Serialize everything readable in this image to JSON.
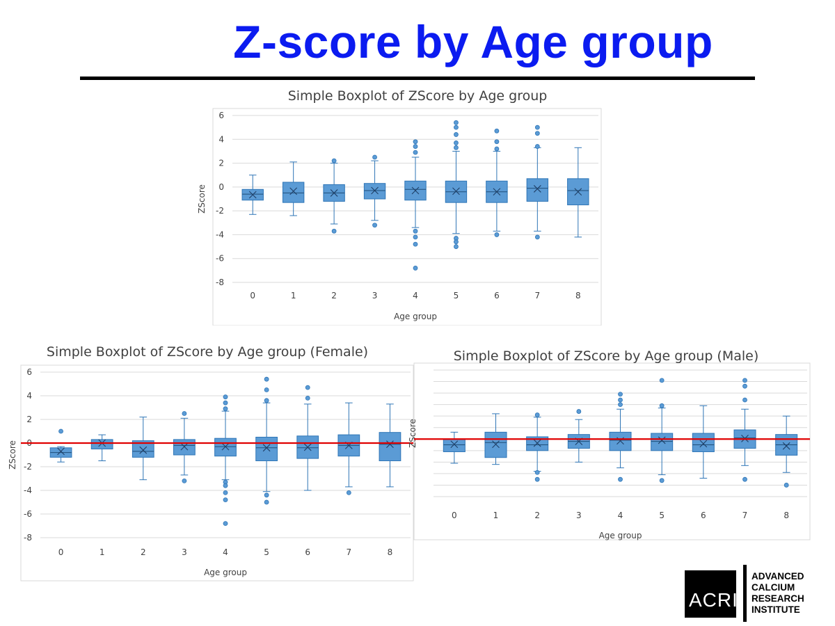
{
  "slide": {
    "title": "Z-score by Age group"
  },
  "logo": {
    "mark": "ACRI",
    "lines": [
      "ADVANCED",
      "CALCIUM",
      "RESEARCH",
      "INSTITUTE"
    ]
  },
  "colors": {
    "box_fill": "#5b9bd5",
    "box_stroke": "#2e75b6",
    "reference_line": "#e00000",
    "title": "#0b1bf0"
  },
  "chart_data": [
    {
      "type": "box",
      "title": "Simple Boxplot of ZScore by Age group",
      "xlabel": "Age group",
      "ylabel": "ZScore",
      "categories": [
        "0",
        "1",
        "2",
        "3",
        "4",
        "5",
        "6",
        "7",
        "8"
      ],
      "ylim": [
        -8,
        6
      ],
      "yticks": [
        -8,
        -6,
        -4,
        -2,
        0,
        2,
        4,
        6
      ],
      "show_ytick_labels": true,
      "reference_line": null,
      "boxes": [
        {
          "min": -2.3,
          "q1": -1.1,
          "median": -0.6,
          "q3": -0.2,
          "max": 1.0,
          "mean": -0.65,
          "outliers": []
        },
        {
          "min": -2.4,
          "q1": -1.3,
          "median": -0.5,
          "q3": 0.4,
          "max": 2.1,
          "mean": -0.35,
          "outliers": []
        },
        {
          "min": -3.1,
          "q1": -1.2,
          "median": -0.5,
          "q3": 0.2,
          "max": 2.0,
          "mean": -0.5,
          "outliers": [
            2.2,
            -3.7
          ]
        },
        {
          "min": -2.8,
          "q1": -1.0,
          "median": -0.3,
          "q3": 0.3,
          "max": 2.2,
          "mean": -0.3,
          "outliers": [
            2.5,
            -3.2
          ]
        },
        {
          "min": -3.4,
          "q1": -1.1,
          "median": -0.2,
          "q3": 0.5,
          "max": 2.5,
          "mean": -0.3,
          "outliers": [
            3.8,
            3.4,
            2.9,
            -3.7,
            -4.2,
            -4.8,
            -6.8
          ]
        },
        {
          "min": -3.9,
          "q1": -1.3,
          "median": -0.4,
          "q3": 0.5,
          "max": 3.0,
          "mean": -0.35,
          "outliers": [
            5.4,
            5.0,
            4.4,
            3.7,
            3.3,
            -4.3,
            -4.6,
            -5.0
          ]
        },
        {
          "min": -3.7,
          "q1": -1.3,
          "median": -0.4,
          "q3": 0.5,
          "max": 3.0,
          "mean": -0.4,
          "outliers": [
            4.7,
            3.8,
            3.2,
            -4.0
          ]
        },
        {
          "min": -3.7,
          "q1": -1.2,
          "median": -0.1,
          "q3": 0.7,
          "max": 3.3,
          "mean": -0.15,
          "outliers": [
            5.0,
            4.5,
            3.4,
            -4.2
          ]
        },
        {
          "min": -4.2,
          "q1": -1.5,
          "median": -0.3,
          "q3": 0.7,
          "max": 3.3,
          "mean": -0.4,
          "outliers": []
        }
      ]
    },
    {
      "type": "box",
      "title": "Simple Boxplot of ZScore by Age group (Female)",
      "xlabel": "Age group",
      "ylabel": "ZScore",
      "categories": [
        "0",
        "1",
        "2",
        "3",
        "4",
        "5",
        "6",
        "7",
        "8"
      ],
      "ylim": [
        -8,
        6
      ],
      "yticks": [
        -8,
        -6,
        -4,
        -2,
        0,
        2,
        4,
        6
      ],
      "show_ytick_labels": true,
      "reference_line": 0,
      "boxes": [
        {
          "min": -1.6,
          "q1": -1.2,
          "median": -0.8,
          "q3": -0.4,
          "max": -0.3,
          "mean": -0.7,
          "outliers": [
            1.0
          ]
        },
        {
          "min": -1.5,
          "q1": -0.5,
          "median": 0.0,
          "q3": 0.3,
          "max": 0.7,
          "mean": 0.0,
          "outliers": []
        },
        {
          "min": -3.1,
          "q1": -1.2,
          "median": -0.7,
          "q3": 0.2,
          "max": 2.2,
          "mean": -0.6,
          "outliers": []
        },
        {
          "min": -2.7,
          "q1": -1.0,
          "median": -0.2,
          "q3": 0.3,
          "max": 2.1,
          "mean": -0.3,
          "outliers": [
            2.5,
            -3.2
          ]
        },
        {
          "min": -3.1,
          "q1": -1.1,
          "median": -0.3,
          "q3": 0.4,
          "max": 2.7,
          "mean": -0.3,
          "outliers": [
            3.9,
            3.4,
            2.9,
            -3.3,
            -3.6,
            -4.2,
            -4.8,
            -6.8
          ]
        },
        {
          "min": -4.1,
          "q1": -1.5,
          "median": -0.4,
          "q3": 0.5,
          "max": 3.4,
          "mean": -0.4,
          "outliers": [
            5.4,
            4.5,
            3.6,
            -4.4,
            -5.0
          ]
        },
        {
          "min": -4.0,
          "q1": -1.3,
          "median": -0.4,
          "q3": 0.6,
          "max": 3.3,
          "mean": -0.35,
          "outliers": [
            4.7,
            3.8
          ]
        },
        {
          "min": -3.7,
          "q1": -1.1,
          "median": -0.2,
          "q3": 0.7,
          "max": 3.4,
          "mean": -0.2,
          "outliers": [
            -4.2
          ]
        },
        {
          "min": -3.7,
          "q1": -1.5,
          "median": -0.1,
          "q3": 0.9,
          "max": 3.3,
          "mean": -0.1,
          "outliers": []
        }
      ]
    },
    {
      "type": "box",
      "title": "Simple Boxplot of ZScore by Age group (Male)",
      "xlabel": "Age group",
      "ylabel": "ZScore",
      "categories": [
        "0",
        "1",
        "2",
        "3",
        "4",
        "5",
        "6",
        "7",
        "8"
      ],
      "ylim": [
        -5,
        6
      ],
      "yticks": [
        -5,
        -4,
        -3,
        -2,
        -1,
        0,
        1,
        2,
        3,
        4,
        5,
        6
      ],
      "show_ytick_labels": false,
      "reference_line": 0,
      "boxes": [
        {
          "min": -2.1,
          "q1": -1.1,
          "median": -0.5,
          "q3": 0.0,
          "max": 0.6,
          "mean": -0.45,
          "outliers": []
        },
        {
          "min": -2.2,
          "q1": -1.6,
          "median": -0.3,
          "q3": 0.6,
          "max": 2.2,
          "mean": -0.45,
          "outliers": []
        },
        {
          "min": -2.8,
          "q1": -1.0,
          "median": -0.5,
          "q3": 0.2,
          "max": 1.9,
          "mean": -0.35,
          "outliers": [
            2.1,
            -2.9,
            -3.5
          ]
        },
        {
          "min": -2.0,
          "q1": -0.8,
          "median": -0.2,
          "q3": 0.4,
          "max": 1.7,
          "mean": -0.2,
          "outliers": [
            2.4
          ]
        },
        {
          "min": -2.5,
          "q1": -1.0,
          "median": -0.1,
          "q3": 0.6,
          "max": 2.6,
          "mean": -0.15,
          "outliers": [
            3.9,
            3.4,
            3.0,
            -3.5
          ]
        },
        {
          "min": -3.1,
          "q1": -1.0,
          "median": -0.2,
          "q3": 0.5,
          "max": 2.7,
          "mean": -0.1,
          "outliers": [
            5.1,
            2.9,
            -3.6
          ]
        },
        {
          "min": -3.4,
          "q1": -1.1,
          "median": -0.5,
          "q3": 0.5,
          "max": 2.9,
          "mean": -0.4,
          "outliers": []
        },
        {
          "min": -2.3,
          "q1": -0.8,
          "median": 0.1,
          "q3": 0.8,
          "max": 2.6,
          "mean": 0.05,
          "outliers": [
            5.1,
            4.6,
            3.4,
            -3.5
          ]
        },
        {
          "min": -2.9,
          "q1": -1.4,
          "median": -0.5,
          "q3": 0.4,
          "max": 2.0,
          "mean": -0.6,
          "outliers": [
            -4.0
          ]
        }
      ]
    }
  ]
}
